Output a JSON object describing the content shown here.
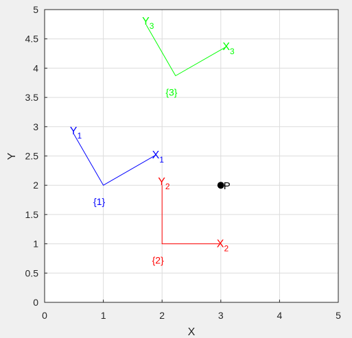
{
  "chart_data": {
    "type": "line",
    "xlabel": "X",
    "ylabel": "Y",
    "xlim": [
      0,
      5
    ],
    "ylim": [
      0,
      5
    ],
    "grid": true,
    "xticks": [
      "0",
      "1",
      "2",
      "3",
      "4",
      "5"
    ],
    "yticks": [
      "0",
      "0.5",
      "1",
      "1.5",
      "2",
      "2.5",
      "3",
      "3.5",
      "4",
      "4.5",
      "5"
    ],
    "xtick_values": [
      0,
      1,
      2,
      3,
      4,
      5
    ],
    "ytick_values": [
      0,
      0.5,
      1,
      1.5,
      2,
      2.5,
      3,
      3.5,
      4,
      4.5,
      5
    ],
    "frames": [
      {
        "label": "{1}",
        "color": "#0000ff",
        "origin": [
          1,
          2
        ],
        "x_axis_end": [
          1.9,
          2.52
        ],
        "y_axis_end": [
          0.5,
          2.87
        ],
        "x_label": {
          "main": "X",
          "sub": "1"
        },
        "y_label": {
          "main": "Y",
          "sub": "1"
        }
      },
      {
        "label": "{2}",
        "color": "#ff0000",
        "origin": [
          2,
          1
        ],
        "x_axis_end": [
          3,
          1
        ],
        "y_axis_end": [
          2,
          2
        ],
        "x_label": {
          "main": "X",
          "sub": "2"
        },
        "y_label": {
          "main": "Y",
          "sub": "2"
        }
      },
      {
        "label": "{3}",
        "color": "#00ff00",
        "origin": [
          2.23,
          3.87
        ],
        "x_axis_end": [
          3.1,
          4.37
        ],
        "y_axis_end": [
          1.73,
          4.74
        ],
        "x_label": {
          "main": "X",
          "sub": "3"
        },
        "y_label": {
          "main": "Y",
          "sub": "3"
        }
      }
    ],
    "point": {
      "label": "P",
      "x": 3,
      "y": 2,
      "color": "#000000"
    }
  }
}
